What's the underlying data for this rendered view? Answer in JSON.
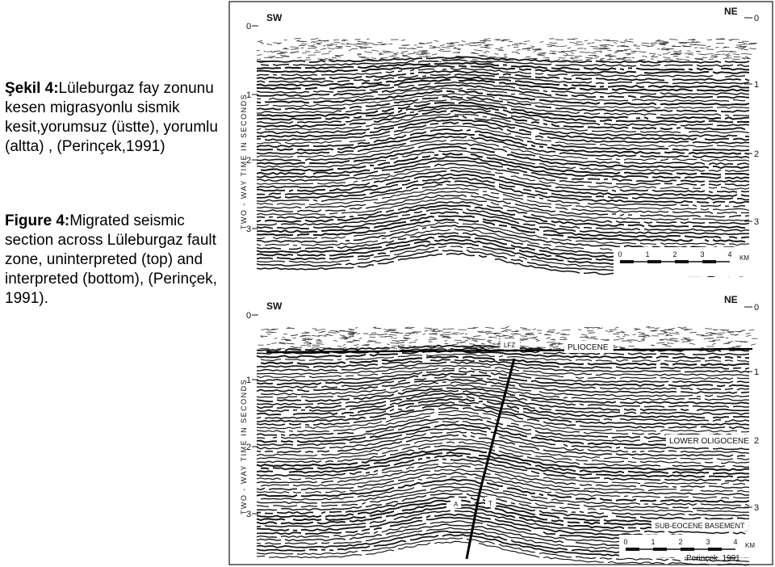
{
  "caption_tr": {
    "label": "Şekil 4:",
    "text": "Lüleburgaz fay zonunu kesen migrasyonlu sismik kesit,yorumsuz (üstte), yorumlu (altta) , (Perinçek,1991)"
  },
  "caption_en": {
    "label": "Figure 4:",
    "text": "Migrated seismic section across Lüleburgaz fault zone, uninterpreted (top) and interpreted (bottom), (Perinçek, 1991)."
  },
  "figure": {
    "left_label": "SW",
    "right_label": "NE",
    "time_ticks": [
      "0",
      "1",
      "2",
      "3"
    ],
    "axis_title": "TWO - WAY TIME IN SECONDS",
    "scale_ticks": [
      "0",
      "1",
      "2",
      "3",
      "4"
    ],
    "scale_unit": "KM",
    "annotations": {
      "fault": "LFZ",
      "pliocene": "PLIOCENE",
      "oligocene": "LOWER OLIGOCENE",
      "basement": "SUB-EOCENE BASEMENT",
      "a": "A",
      "t": "T"
    },
    "credit": "Perinçek, 1991"
  }
}
